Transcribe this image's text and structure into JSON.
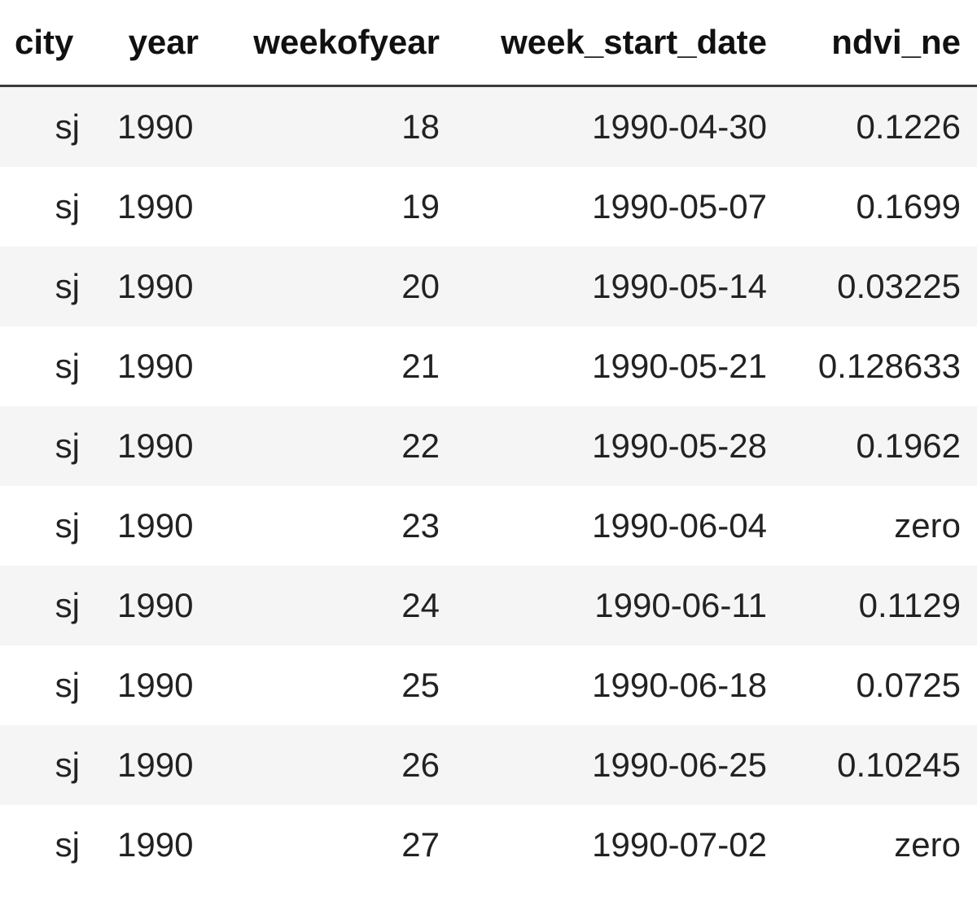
{
  "table": {
    "columns": [
      "city",
      "year",
      "weekofyear",
      "week_start_date",
      "ndvi_ne"
    ],
    "rows": [
      [
        "sj",
        "1990",
        "18",
        "1990-04-30",
        "0.1226"
      ],
      [
        "sj",
        "1990",
        "19",
        "1990-05-07",
        "0.1699"
      ],
      [
        "sj",
        "1990",
        "20",
        "1990-05-14",
        "0.03225"
      ],
      [
        "sj",
        "1990",
        "21",
        "1990-05-21",
        "0.128633"
      ],
      [
        "sj",
        "1990",
        "22",
        "1990-05-28",
        "0.1962"
      ],
      [
        "sj",
        "1990",
        "23",
        "1990-06-04",
        "zero"
      ],
      [
        "sj",
        "1990",
        "24",
        "1990-06-11",
        "0.1129"
      ],
      [
        "sj",
        "1990",
        "25",
        "1990-06-18",
        "0.0725"
      ],
      [
        "sj",
        "1990",
        "26",
        "1990-06-25",
        "0.10245"
      ],
      [
        "sj",
        "1990",
        "27",
        "1990-07-02",
        "zero"
      ]
    ]
  },
  "colors": {
    "row_stripe": "#f5f5f5",
    "header_rule": "#3a3a3a"
  }
}
